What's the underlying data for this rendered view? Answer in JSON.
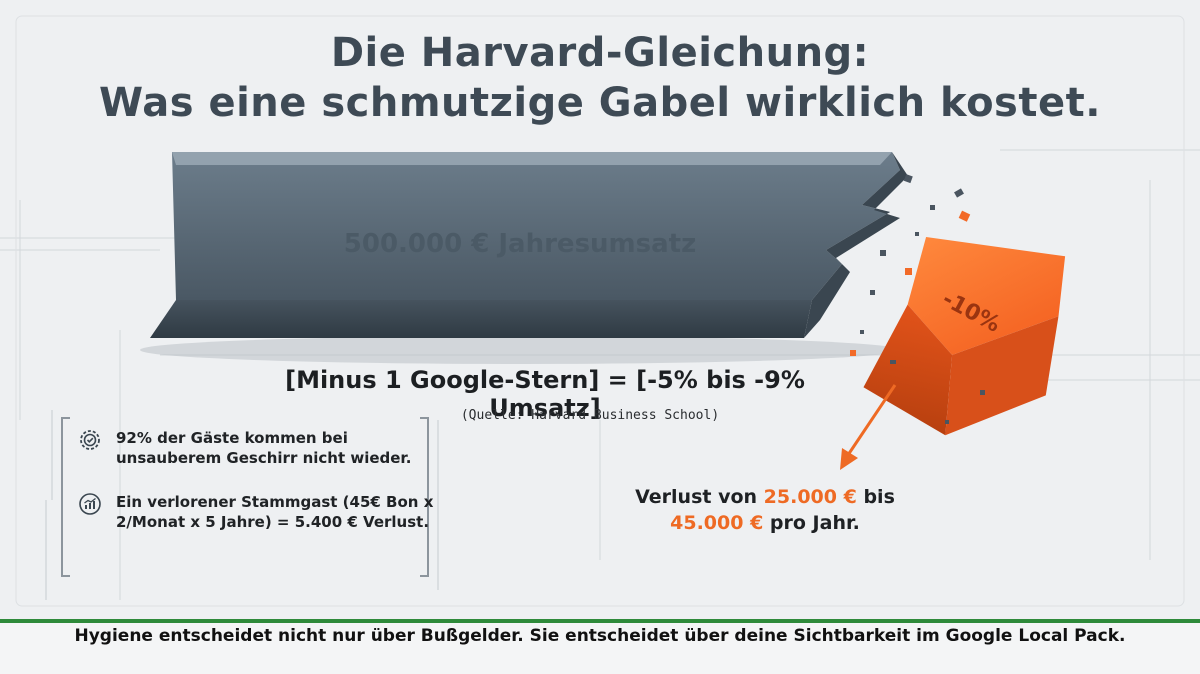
{
  "title": {
    "line1": "Die Harvard-Gleichung:",
    "line2": "Was eine schmutzige Gabel wirklich kostet."
  },
  "bar": {
    "label": "500.000 € Jahresumsatz",
    "color": "#5a6b7a"
  },
  "chunk": {
    "label": "-10%",
    "color": "#f2692a"
  },
  "equation": "[Minus 1 Google-Stern] = [-5% bis -9% Umsatz]",
  "source": "(Quelle: Harvard Business School)",
  "bullets": [
    {
      "icon": "gear-check-icon",
      "text": "92% der Gäste kommen bei unsauberem Geschirr nicht wieder."
    },
    {
      "icon": "chart-icon",
      "text": "Ein verlorener Stammgast (45€ Bon x 2/Monat x 5 Jahre) = 5.400 € Verlust."
    }
  ],
  "loss": {
    "prefix": "Verlust von",
    "amount1": "25.000 €",
    "middle": "bis",
    "amount2": "45.000 €",
    "suffix": "pro Jahr."
  },
  "footer": "Hygiene entscheidet nicht nur über Bußgelder. Sie entscheidet über deine Sichtbarkeit im Google Local Pack.",
  "colors": {
    "accent": "#ee6a24",
    "footer_line": "#2e8a3a",
    "title": "#3e4a55"
  }
}
